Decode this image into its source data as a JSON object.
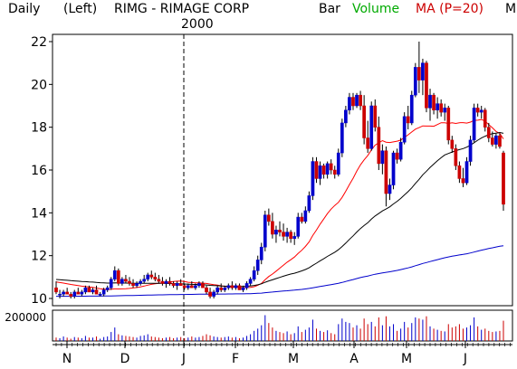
{
  "header": {
    "period": "Daily",
    "axis_side": "(Left)",
    "symbol_title": "RIMG - RIMAGE CORP",
    "style": "Bar",
    "volume": "Volume",
    "ma": "MA (P=20)",
    "more": "M"
  },
  "colors": {
    "up": "#0000cc",
    "down": "#cc0000",
    "volume_label": "#00aa00",
    "ma_label": "#cc0000",
    "ma20": "#ff0000",
    "ma50": "#000000",
    "ma200": "#0000cc"
  },
  "chart_data": {
    "type": "candlestick",
    "year_marker": "2000",
    "price_axis": {
      "ticks": [
        10,
        12,
        14,
        16,
        18,
        20,
        22
      ],
      "range": [
        10,
        22
      ]
    },
    "volume_axis": {
      "label": "200000",
      "max": 250000
    },
    "months": [
      "N",
      "D",
      "J",
      "F",
      "M",
      "A",
      "M",
      "J"
    ],
    "candles": [
      [
        10.5,
        10.8,
        10.2,
        10.3
      ],
      [
        10.2,
        10.4,
        10.0,
        10.2
      ],
      [
        10.2,
        10.4,
        10.1,
        10.3
      ],
      [
        10.3,
        10.5,
        10.2,
        10.2
      ],
      [
        10.2,
        10.3,
        10.0,
        10.1
      ],
      [
        10.1,
        10.4,
        10.0,
        10.3
      ],
      [
        10.3,
        10.5,
        10.2,
        10.2
      ],
      [
        10.2,
        10.4,
        10.1,
        10.3
      ],
      [
        10.3,
        10.6,
        10.2,
        10.5
      ],
      [
        10.5,
        10.6,
        10.3,
        10.3
      ],
      [
        10.3,
        10.5,
        10.2,
        10.4
      ],
      [
        10.4,
        10.6,
        10.2,
        10.2
      ],
      [
        10.2,
        10.3,
        10.1,
        10.2
      ],
      [
        10.2,
        10.5,
        10.1,
        10.4
      ],
      [
        10.4,
        10.6,
        10.3,
        10.5
      ],
      [
        10.5,
        11.0,
        10.4,
        10.9
      ],
      [
        10.9,
        11.5,
        10.8,
        11.3
      ],
      [
        11.3,
        11.4,
        10.6,
        10.7
      ],
      [
        10.7,
        11.0,
        10.6,
        10.9
      ],
      [
        10.9,
        11.1,
        10.7,
        10.8
      ],
      [
        10.8,
        11.0,
        10.6,
        10.7
      ],
      [
        10.7,
        10.9,
        10.5,
        10.6
      ],
      [
        10.6,
        10.8,
        10.5,
        10.7
      ],
      [
        10.7,
        10.9,
        10.6,
        10.8
      ],
      [
        10.8,
        11.1,
        10.7,
        10.9
      ],
      [
        10.9,
        11.2,
        10.8,
        11.1
      ],
      [
        11.1,
        11.3,
        10.9,
        11.0
      ],
      [
        11.0,
        11.2,
        10.8,
        10.9
      ],
      [
        10.9,
        11.1,
        10.7,
        10.8
      ],
      [
        10.8,
        11.0,
        10.6,
        10.7
      ],
      [
        10.7,
        10.9,
        10.5,
        10.8
      ],
      [
        10.8,
        11.0,
        10.6,
        10.7
      ],
      [
        10.7,
        10.8,
        10.5,
        10.6
      ],
      [
        10.6,
        10.8,
        10.4,
        10.7
      ],
      [
        10.7,
        10.9,
        10.6,
        10.6
      ],
      [
        10.6,
        10.7,
        10.4,
        10.5
      ],
      [
        10.5,
        10.7,
        10.4,
        10.6
      ],
      [
        10.6,
        10.8,
        10.5,
        10.5
      ],
      [
        10.5,
        10.7,
        10.4,
        10.6
      ],
      [
        10.6,
        10.8,
        10.5,
        10.7
      ],
      [
        10.7,
        10.8,
        10.5,
        10.5
      ],
      [
        10.5,
        10.6,
        10.2,
        10.3
      ],
      [
        10.3,
        10.5,
        10.0,
        10.1
      ],
      [
        10.1,
        10.4,
        10.0,
        10.3
      ],
      [
        10.3,
        10.6,
        10.2,
        10.5
      ],
      [
        10.5,
        10.7,
        10.3,
        10.4
      ],
      [
        10.4,
        10.6,
        10.3,
        10.5
      ],
      [
        10.5,
        10.7,
        10.4,
        10.6
      ],
      [
        10.6,
        10.8,
        10.4,
        10.5
      ],
      [
        10.5,
        10.7,
        10.4,
        10.6
      ],
      [
        10.6,
        10.7,
        10.4,
        10.4
      ],
      [
        10.4,
        10.6,
        10.3,
        10.5
      ],
      [
        10.5,
        10.8,
        10.4,
        10.7
      ],
      [
        10.7,
        11.0,
        10.6,
        10.9
      ],
      [
        10.9,
        11.5,
        10.8,
        11.3
      ],
      [
        11.3,
        12.0,
        11.1,
        11.8
      ],
      [
        11.8,
        12.6,
        11.6,
        12.4
      ],
      [
        12.4,
        14.1,
        12.2,
        13.9
      ],
      [
        13.9,
        14.2,
        13.4,
        13.6
      ],
      [
        13.6,
        14.0,
        12.8,
        13.0
      ],
      [
        13.0,
        13.4,
        12.6,
        13.2
      ],
      [
        13.2,
        13.6,
        12.9,
        13.1
      ],
      [
        13.1,
        13.5,
        12.7,
        12.9
      ],
      [
        12.9,
        13.3,
        12.6,
        13.1
      ],
      [
        13.1,
        13.2,
        12.6,
        12.8
      ],
      [
        12.8,
        13.1,
        12.5,
        12.9
      ],
      [
        12.9,
        14.0,
        12.8,
        13.8
      ],
      [
        13.8,
        14.0,
        13.5,
        13.6
      ],
      [
        13.6,
        14.3,
        13.5,
        14.1
      ],
      [
        14.1,
        15.0,
        14.0,
        14.8
      ],
      [
        14.8,
        16.6,
        14.6,
        16.4
      ],
      [
        16.4,
        16.6,
        15.4,
        15.6
      ],
      [
        15.6,
        16.4,
        15.3,
        16.2
      ],
      [
        16.2,
        16.3,
        15.6,
        15.8
      ],
      [
        15.8,
        16.4,
        15.6,
        16.3
      ],
      [
        16.3,
        16.5,
        15.8,
        16.0
      ],
      [
        16.0,
        16.2,
        15.6,
        15.8
      ],
      [
        15.8,
        17.0,
        15.7,
        16.8
      ],
      [
        16.8,
        18.4,
        16.6,
        18.2
      ],
      [
        18.2,
        19.0,
        18.0,
        18.8
      ],
      [
        18.8,
        19.6,
        18.6,
        19.4
      ],
      [
        19.4,
        19.6,
        18.8,
        19.0
      ],
      [
        19.0,
        19.6,
        18.9,
        19.5
      ],
      [
        19.5,
        19.7,
        18.8,
        19.0
      ],
      [
        19.0,
        19.5,
        17.2,
        17.5
      ],
      [
        17.5,
        18.3,
        16.8,
        17.0
      ],
      [
        17.0,
        19.2,
        16.9,
        19.0
      ],
      [
        19.0,
        19.3,
        17.8,
        18.0
      ],
      [
        18.0,
        18.5,
        16.0,
        16.3
      ],
      [
        16.3,
        17.2,
        15.8,
        16.9
      ],
      [
        16.9,
        17.1,
        14.3,
        14.9
      ],
      [
        14.9,
        15.6,
        14.6,
        15.3
      ],
      [
        15.3,
        16.9,
        15.1,
        16.8
      ],
      [
        16.8,
        17.0,
        16.3,
        16.5
      ],
      [
        16.5,
        17.5,
        16.4,
        17.3
      ],
      [
        17.3,
        18.7,
        17.2,
        18.5
      ],
      [
        18.5,
        19.0,
        17.9,
        18.2
      ],
      [
        18.2,
        19.7,
        18.1,
        19.5
      ],
      [
        19.5,
        21.0,
        19.4,
        20.8
      ],
      [
        20.8,
        22.0,
        19.6,
        20.2
      ],
      [
        20.2,
        21.2,
        19.5,
        21.0
      ],
      [
        21.0,
        21.1,
        18.7,
        18.9
      ],
      [
        18.9,
        19.8,
        18.3,
        19.5
      ],
      [
        19.5,
        19.6,
        18.6,
        18.8
      ],
      [
        18.8,
        19.4,
        18.4,
        19.1
      ],
      [
        19.1,
        19.3,
        18.5,
        18.7
      ],
      [
        18.7,
        19.1,
        18.3,
        18.9
      ],
      [
        18.9,
        19.0,
        17.2,
        17.4
      ],
      [
        17.4,
        17.6,
        16.8,
        17.0
      ],
      [
        17.0,
        17.2,
        16.0,
        16.2
      ],
      [
        16.2,
        16.4,
        15.4,
        15.6
      ],
      [
        15.6,
        16.1,
        15.2,
        15.4
      ],
      [
        15.4,
        16.6,
        15.3,
        16.4
      ],
      [
        16.4,
        17.6,
        16.2,
        17.4
      ],
      [
        17.4,
        19.1,
        17.3,
        18.9
      ],
      [
        18.9,
        19.1,
        18.5,
        18.7
      ],
      [
        18.7,
        19.0,
        18.4,
        18.8
      ],
      [
        18.8,
        18.9,
        17.8,
        18.0
      ],
      [
        18.0,
        18.2,
        17.3,
        17.5
      ],
      [
        17.5,
        17.8,
        17.1,
        17.2
      ],
      [
        17.2,
        17.7,
        17.0,
        17.6
      ],
      [
        17.6,
        17.7,
        17.0,
        17.1
      ],
      [
        16.8,
        16.9,
        14.1,
        14.4
      ]
    ],
    "volume": [
      30,
      25,
      40,
      30,
      20,
      35,
      30,
      25,
      45,
      30,
      30,
      40,
      20,
      35,
      40,
      80,
      120,
      60,
      50,
      45,
      40,
      35,
      30,
      45,
      50,
      60,
      40,
      35,
      30,
      25,
      30,
      35,
      25,
      30,
      35,
      25,
      30,
      40,
      30,
      35,
      45,
      60,
      50,
      40,
      35,
      30,
      35,
      40,
      30,
      35,
      25,
      30,
      45,
      60,
      90,
      110,
      140,
      230,
      160,
      120,
      90,
      80,
      70,
      85,
      60,
      70,
      130,
      80,
      100,
      120,
      190,
      110,
      90,
      80,
      95,
      70,
      60,
      150,
      200,
      170,
      160,
      120,
      140,
      110,
      200,
      150,
      170,
      130,
      210,
      140,
      220,
      130,
      150,
      90,
      110,
      170,
      120,
      160,
      210,
      200,
      190,
      220,
      130,
      110,
      100,
      90,
      85,
      150,
      120,
      130,
      150,
      110,
      120,
      140,
      210,
      130,
      100,
      110,
      90,
      80,
      85,
      90,
      180
    ]
  }
}
